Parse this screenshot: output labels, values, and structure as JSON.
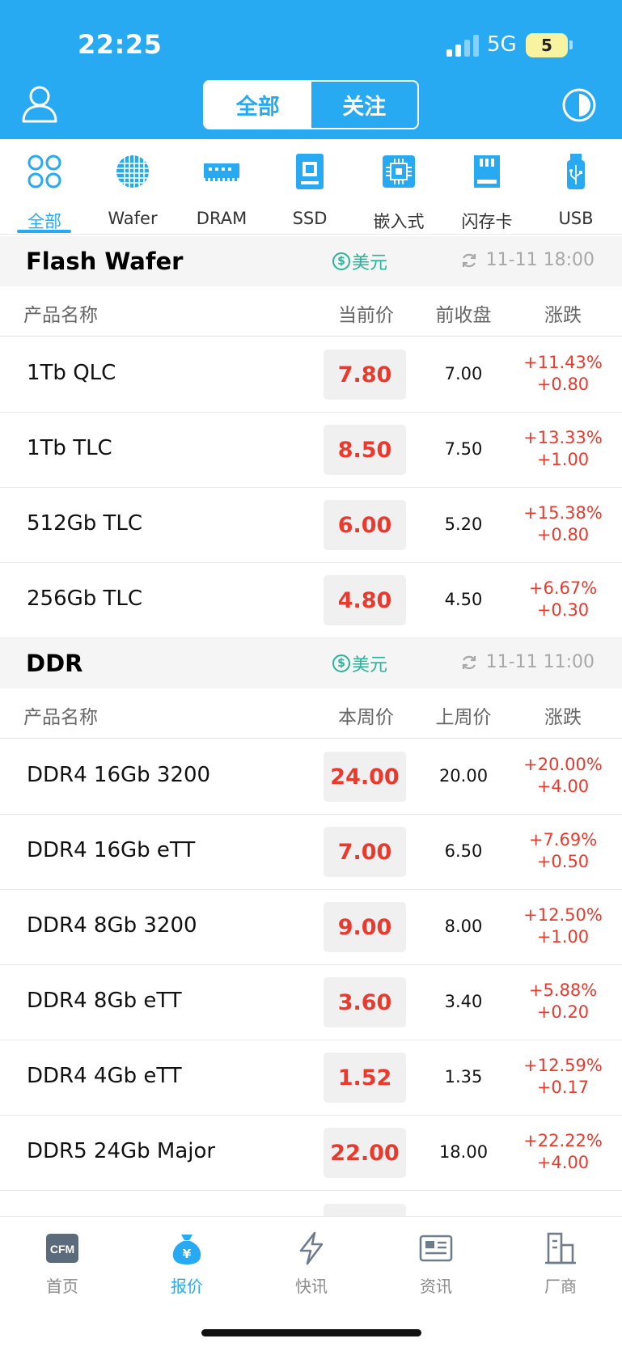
{
  "status_bar": {
    "time": "22:25",
    "network": "5G",
    "battery": "5"
  },
  "header": {
    "tabs": [
      "全部",
      "关注"
    ]
  },
  "categories": [
    {
      "label": "全部",
      "icon": "grid-icon"
    },
    {
      "label": "Wafer",
      "icon": "wafer-icon"
    },
    {
      "label": "DRAM",
      "icon": "dram-icon"
    },
    {
      "label": "SSD",
      "icon": "ssd-icon"
    },
    {
      "label": "嵌入式",
      "icon": "chip-icon"
    },
    {
      "label": "闪存卡",
      "icon": "sd-card-icon"
    },
    {
      "label": "USB",
      "icon": "usb-icon"
    }
  ],
  "sections": [
    {
      "title": "Flash Wafer",
      "currency": "美元",
      "updated": "11-11 18:00",
      "columns": [
        "产品名称",
        "当前价",
        "前收盘",
        "涨跌"
      ],
      "rows": [
        {
          "name": "1Tb QLC",
          "price": "7.80",
          "prev": "7.00",
          "pct": "+11.43%",
          "diff": "+0.80"
        },
        {
          "name": "1Tb TLC",
          "price": "8.50",
          "prev": "7.50",
          "pct": "+13.33%",
          "diff": "+1.00"
        },
        {
          "name": "512Gb TLC",
          "price": "6.00",
          "prev": "5.20",
          "pct": "+15.38%",
          "diff": "+0.80"
        },
        {
          "name": "256Gb TLC",
          "price": "4.80",
          "prev": "4.50",
          "pct": "+6.67%",
          "diff": "+0.30"
        }
      ]
    },
    {
      "title": "DDR",
      "currency": "美元",
      "updated": "11-11 11:00",
      "columns": [
        "产品名称",
        "本周价",
        "上周价",
        "涨跌"
      ],
      "rows": [
        {
          "name": "DDR4 16Gb 3200",
          "price": "24.00",
          "prev": "20.00",
          "pct": "+20.00%",
          "diff": "+4.00"
        },
        {
          "name": "DDR4 16Gb eTT",
          "price": "7.00",
          "prev": "6.50",
          "pct": "+7.69%",
          "diff": "+0.50"
        },
        {
          "name": "DDR4 8Gb 3200",
          "price": "9.00",
          "prev": "8.00",
          "pct": "+12.50%",
          "diff": "+1.00"
        },
        {
          "name": "DDR4 8Gb eTT",
          "price": "3.60",
          "prev": "3.40",
          "pct": "+5.88%",
          "diff": "+0.20"
        },
        {
          "name": "DDR4 4Gb eTT",
          "price": "1.52",
          "prev": "1.35",
          "pct": "+12.59%",
          "diff": "+0.17"
        },
        {
          "name": "DDR5 24Gb Major",
          "price": "22.00",
          "prev": "18.00",
          "pct": "+22.22%",
          "diff": "+4.00"
        }
      ]
    }
  ],
  "bottom_nav": [
    {
      "label": "首页",
      "icon": "cfm-logo-icon"
    },
    {
      "label": "报价",
      "icon": "money-bag-icon"
    },
    {
      "label": "快讯",
      "icon": "lightning-icon"
    },
    {
      "label": "资讯",
      "icon": "newspaper-icon"
    },
    {
      "label": "厂商",
      "icon": "building-icon"
    }
  ],
  "colors": {
    "brand": "#27aaf1",
    "up": "#e93a2e",
    "currency": "#2bb39a"
  }
}
